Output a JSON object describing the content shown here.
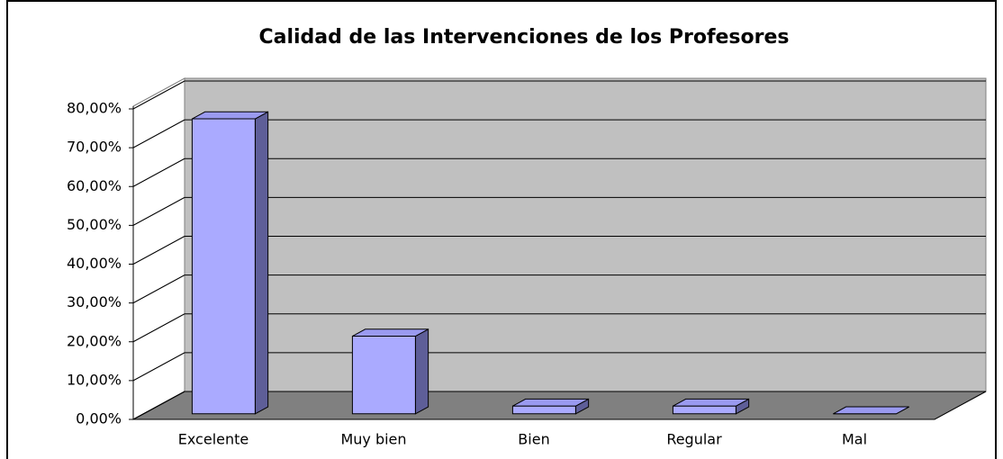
{
  "chart_data": {
    "type": "bar3d",
    "title": "Calidad de las Intervenciones de los Profesores",
    "categories": [
      "Excelente",
      "Muy bien",
      "Bien",
      "Regular",
      "Mal"
    ],
    "values": [
      76,
      20,
      2,
      2,
      0
    ],
    "color": "#aaaaff",
    "ylim": [
      0,
      80
    ],
    "yticks": [
      {
        "value": 0,
        "label": "0,00%"
      },
      {
        "value": 10,
        "label": "10,00%"
      },
      {
        "value": 20,
        "label": "20,00%"
      },
      {
        "value": 30,
        "label": "30,00%"
      },
      {
        "value": 40,
        "label": "40,00%"
      },
      {
        "value": 50,
        "label": "50,00%"
      },
      {
        "value": 60,
        "label": "60,00%"
      },
      {
        "value": 70,
        "label": "70,00%"
      },
      {
        "value": 80,
        "label": "80,00%"
      }
    ],
    "grid": true
  }
}
